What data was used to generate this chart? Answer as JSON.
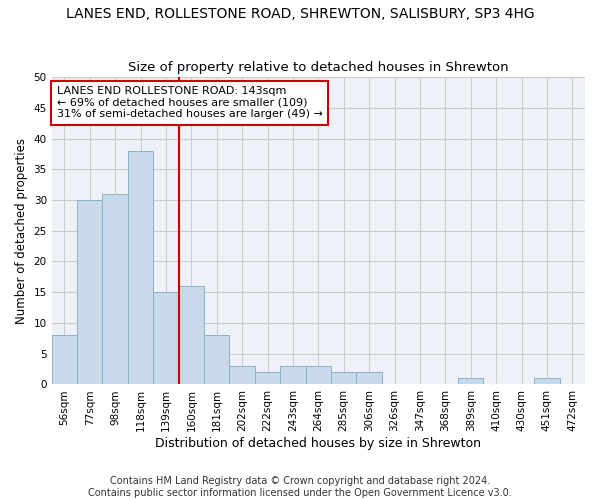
{
  "title": "LANES END, ROLLESTONE ROAD, SHREWTON, SALISBURY, SP3 4HG",
  "subtitle": "Size of property relative to detached houses in Shrewton",
  "xlabel": "Distribution of detached houses by size in Shrewton",
  "ylabel": "Number of detached properties",
  "categories": [
    "56sqm",
    "77sqm",
    "98sqm",
    "118sqm",
    "139sqm",
    "160sqm",
    "181sqm",
    "202sqm",
    "222sqm",
    "243sqm",
    "264sqm",
    "285sqm",
    "306sqm",
    "326sqm",
    "347sqm",
    "368sqm",
    "389sqm",
    "410sqm",
    "430sqm",
    "451sqm",
    "472sqm"
  ],
  "values": [
    8,
    30,
    31,
    38,
    15,
    16,
    8,
    3,
    2,
    3,
    3,
    2,
    2,
    0,
    0,
    0,
    1,
    0,
    0,
    1,
    0
  ],
  "bar_color": "#c8d9ea",
  "bar_edge_color": "#8ab0cc",
  "vline_pos": 4.5,
  "vline_color": "#cc0000",
  "annotation_text": "LANES END ROLLESTONE ROAD: 143sqm\n← 69% of detached houses are smaller (109)\n31% of semi-detached houses are larger (49) →",
  "annotation_box_color": "white",
  "annotation_box_edge": "#cc0000",
  "ylim": [
    0,
    50
  ],
  "yticks": [
    0,
    5,
    10,
    15,
    20,
    25,
    30,
    35,
    40,
    45,
    50
  ],
  "grid_color": "#cccccc",
  "bg_color": "#eef2f8",
  "footer": "Contains HM Land Registry data © Crown copyright and database right 2024.\nContains public sector information licensed under the Open Government Licence v3.0.",
  "title_fontsize": 10,
  "subtitle_fontsize": 9.5,
  "ylabel_fontsize": 8.5,
  "xlabel_fontsize": 9,
  "tick_fontsize": 7.5,
  "footer_fontsize": 7,
  "ann_fontsize": 8
}
